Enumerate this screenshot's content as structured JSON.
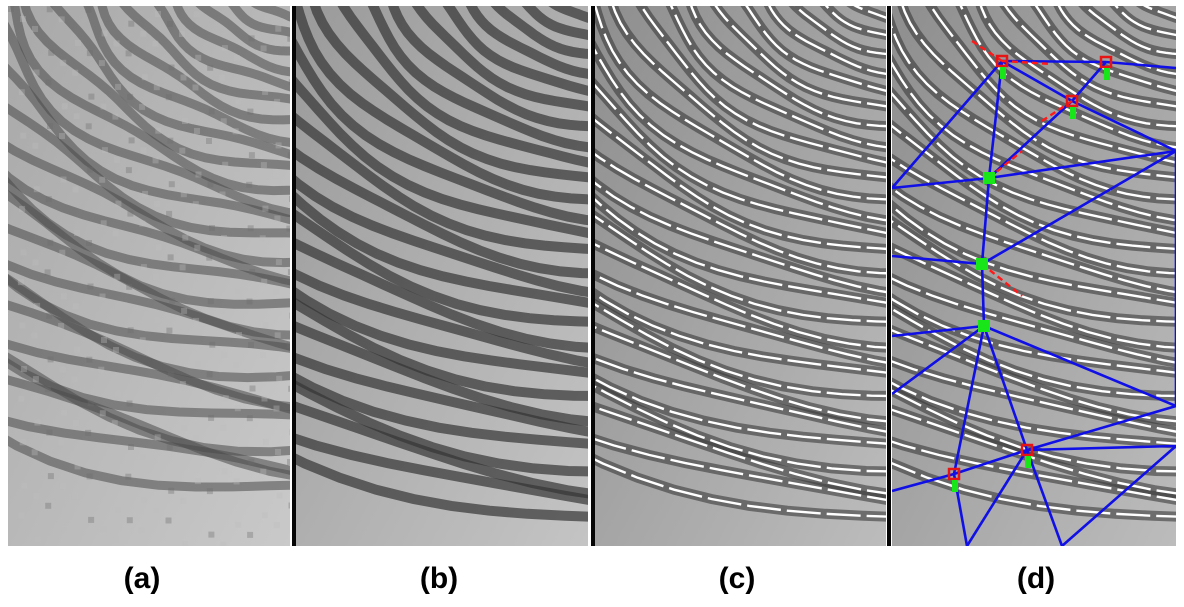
{
  "figure": {
    "panels": [
      {
        "id": "a",
        "caption": "(a)",
        "content": "raw-fingerprint"
      },
      {
        "id": "b",
        "caption": "(b)",
        "content": "enhanced-fingerprint"
      },
      {
        "id": "c",
        "caption": "(c)",
        "content": "skeleton-overlay"
      },
      {
        "id": "d",
        "caption": "(d)",
        "content": "minutiae-triangulation"
      }
    ],
    "colors": {
      "background": "#ffffff",
      "divider": "#050505",
      "ridge_dark": "#3c3c3c",
      "ridge_light": "#d2d2d2",
      "skeleton": "#ffffff",
      "triangulation_edge": "#1010e6",
      "minutia_ending": "#e61414",
      "minutia_bifurcation": "#18e618",
      "minutia_direction": "#ff1a1a"
    }
  }
}
